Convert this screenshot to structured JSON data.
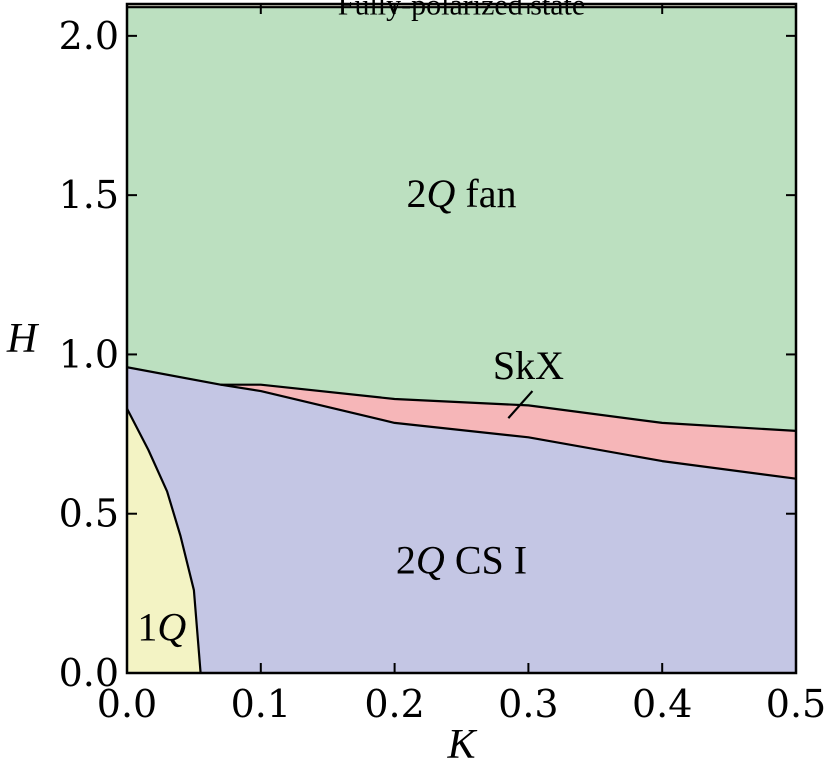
{
  "chart_data": {
    "type": "area",
    "title": "",
    "xlabel": "K",
    "ylabel": "H",
    "xlim": [
      0,
      0.5
    ],
    "ylim": [
      0,
      2.1
    ],
    "xticks": [
      0.0,
      0.1,
      0.2,
      0.3,
      0.4,
      0.5
    ],
    "xtick_labels": [
      "0.0",
      "0.1",
      "0.2",
      "0.3",
      "0.4",
      "0.5"
    ],
    "yticks": [
      0.0,
      0.5,
      1.0,
      1.5,
      2.0
    ],
    "ytick_labels": [
      "0.0",
      "0.5",
      "1.0",
      "1.5",
      "2.0"
    ],
    "grid": false,
    "regions": [
      {
        "name": "fully-polarized",
        "label": "Fully-polarized state",
        "color": "#d3d1c0",
        "boundary": [
          [
            0,
            2.09
          ],
          [
            0.5,
            2.09
          ],
          [
            0.5,
            2.1
          ],
          [
            0,
            2.1
          ]
        ]
      },
      {
        "name": "2q-fan",
        "label_num": "2",
        "label_q": "Q",
        "label_rest": " fan",
        "color": "#bce0c0",
        "boundary": [
          [
            0,
            2.09
          ],
          [
            0.5,
            2.09
          ],
          [
            0.5,
            0.76
          ],
          [
            0.4,
            0.785
          ],
          [
            0.3,
            0.84
          ],
          [
            0.2,
            0.86
          ],
          [
            0.1,
            0.905
          ],
          [
            0.07,
            0.905
          ],
          [
            0,
            0.96
          ]
        ]
      },
      {
        "name": "skx",
        "label": "SkX",
        "color": "#f6b6b8",
        "boundary": [
          [
            0.07,
            0.905
          ],
          [
            0.1,
            0.905
          ],
          [
            0.2,
            0.86
          ],
          [
            0.3,
            0.84
          ],
          [
            0.4,
            0.785
          ],
          [
            0.5,
            0.76
          ],
          [
            0.5,
            0.61
          ],
          [
            0.4,
            0.665
          ],
          [
            0.3,
            0.74
          ],
          [
            0.2,
            0.785
          ],
          [
            0.1,
            0.885
          ]
        ]
      },
      {
        "name": "2q-cs-i",
        "label_num": "2",
        "label_q": "Q",
        "label_rest": " CS I",
        "color": "#c4c6e4",
        "boundary": [
          [
            0,
            0.96
          ],
          [
            0.07,
            0.905
          ],
          [
            0.1,
            0.885
          ],
          [
            0.2,
            0.785
          ],
          [
            0.3,
            0.74
          ],
          [
            0.4,
            0.665
          ],
          [
            0.5,
            0.61
          ],
          [
            0.5,
            0
          ],
          [
            0.055,
            0
          ],
          [
            0.05,
            0.26
          ],
          [
            0.04,
            0.43
          ],
          [
            0.03,
            0.57
          ],
          [
            0.016,
            0.7
          ],
          [
            0,
            0.83
          ]
        ]
      },
      {
        "name": "1q",
        "label_num": "1",
        "label_q": "Q",
        "color": "#f3f3c4",
        "boundary": [
          [
            0,
            0.83
          ],
          [
            0.016,
            0.7
          ],
          [
            0.03,
            0.57
          ],
          [
            0.04,
            0.43
          ],
          [
            0.05,
            0.26
          ],
          [
            0.055,
            0
          ],
          [
            0,
            0
          ]
        ]
      }
    ],
    "boundaries": [
      [
        [
          0,
          2.09
        ],
        [
          0.5,
          2.09
        ]
      ],
      [
        [
          0,
          0.96
        ],
        [
          0.07,
          0.905
        ],
        [
          0.1,
          0.885
        ],
        [
          0.2,
          0.785
        ],
        [
          0.3,
          0.74
        ],
        [
          0.4,
          0.665
        ],
        [
          0.5,
          0.61
        ]
      ],
      [
        [
          0.07,
          0.905
        ],
        [
          0.1,
          0.905
        ],
        [
          0.2,
          0.86
        ],
        [
          0.3,
          0.84
        ],
        [
          0.4,
          0.785
        ],
        [
          0.5,
          0.76
        ]
      ],
      [
        [
          0,
          0.83
        ],
        [
          0.016,
          0.7
        ],
        [
          0.03,
          0.57
        ],
        [
          0.04,
          0.43
        ],
        [
          0.05,
          0.26
        ],
        [
          0.055,
          0
        ]
      ]
    ],
    "label_positions": {
      "fully-polarized": [
        0.25,
        2.095
      ],
      "2q-fan": [
        0.25,
        1.5
      ],
      "skx": [
        0.3,
        0.96
      ],
      "2q-cs-i": [
        0.25,
        0.35
      ],
      "1q": [
        0.026,
        0.14
      ]
    },
    "skx_pointer": [
      [
        0.285,
        0.8
      ],
      [
        0.303,
        0.885
      ]
    ]
  }
}
